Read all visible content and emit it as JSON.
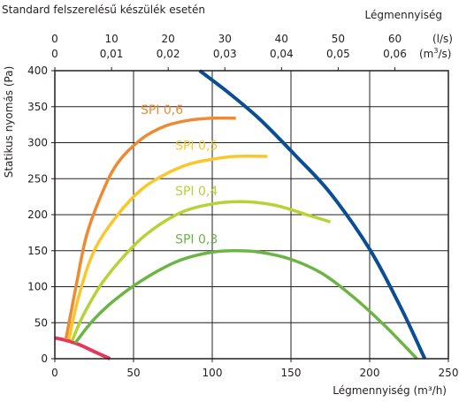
{
  "header": {
    "title": "Standard felszerelésű készülék esetén",
    "top_axis_title": "Légmennyiség"
  },
  "chart_data": {
    "type": "line",
    "title": "Standard felszerelésű készülék esetén",
    "xlabel": "Légmennyiség (m³/h)",
    "ylabel": "Statikus nyomás (Pa)",
    "xlim": [
      0,
      250
    ],
    "ylim": [
      0,
      400
    ],
    "grid": true,
    "x_ticks": [
      0,
      50,
      100,
      150,
      200,
      250
    ],
    "y_ticks": [
      0,
      50,
      100,
      150,
      200,
      250,
      300,
      350,
      400
    ],
    "secondary_x_ls": {
      "label": "Légmennyiség",
      "unit": "(l/s)",
      "ticks": [
        "0",
        "10",
        "20",
        "30",
        "40",
        "50",
        "60"
      ],
      "values_m3h": [
        0,
        36,
        72,
        108,
        144,
        180,
        216
      ]
    },
    "secondary_x_m3s": {
      "unit_base": "(m",
      "unit_sup": "3",
      "unit_tail": "/s)",
      "ticks": [
        "0",
        "0,01",
        "0,02",
        "0,03",
        "0,04",
        "0,05",
        "0,06"
      ],
      "values_m3h": [
        0,
        36,
        72,
        108,
        144,
        180,
        216
      ]
    },
    "series": [
      {
        "name": "",
        "color": "#0a4f93",
        "width": 4,
        "points": [
          [
            92,
            400
          ],
          [
            110,
            370
          ],
          [
            130,
            333
          ],
          [
            153,
            282
          ],
          [
            175,
            230
          ],
          [
            200,
            152
          ],
          [
            220,
            70
          ],
          [
            235,
            0
          ]
        ]
      },
      {
        "name": "",
        "color": "#e5375a",
        "width": 4,
        "points": [
          [
            0,
            29
          ],
          [
            8,
            25
          ],
          [
            15,
            20
          ],
          [
            25,
            10
          ],
          [
            35,
            0
          ]
        ]
      },
      {
        "name": "SPI 0,6",
        "color": "#ee8a33",
        "width": 3.5,
        "points": [
          [
            7,
            27
          ],
          [
            13,
            95
          ],
          [
            20,
            170
          ],
          [
            30,
            230
          ],
          [
            40,
            272
          ],
          [
            55,
            305
          ],
          [
            70,
            323
          ],
          [
            85,
            331
          ],
          [
            100,
            334
          ],
          [
            115,
            334
          ]
        ],
        "label_at": [
          68,
          340
        ]
      },
      {
        "name": "SPI 0,5",
        "color": "#f9c72b",
        "width": 3.5,
        "points": [
          [
            9,
            27
          ],
          [
            15,
            85
          ],
          [
            25,
            150
          ],
          [
            40,
            200
          ],
          [
            55,
            235
          ],
          [
            70,
            256
          ],
          [
            85,
            270
          ],
          [
            100,
            277
          ],
          [
            115,
            281
          ],
          [
            135,
            281
          ]
        ],
        "label_at": [
          90,
          290
        ]
      },
      {
        "name": "SPI 0,4",
        "color": "#b5d334",
        "width": 3.5,
        "points": [
          [
            11,
            25
          ],
          [
            18,
            60
          ],
          [
            30,
            105
          ],
          [
            45,
            145
          ],
          [
            60,
            176
          ],
          [
            80,
            203
          ],
          [
            100,
            215
          ],
          [
            120,
            218
          ],
          [
            140,
            213
          ],
          [
            160,
            200
          ],
          [
            175,
            190
          ]
        ],
        "label_at": [
          90,
          227
        ]
      },
      {
        "name": "SPI 0,3",
        "color": "#6cb443",
        "width": 3.5,
        "points": [
          [
            13,
            22
          ],
          [
            25,
            55
          ],
          [
            40,
            85
          ],
          [
            60,
            115
          ],
          [
            80,
            137
          ],
          [
            100,
            148
          ],
          [
            115,
            150
          ],
          [
            130,
            148
          ],
          [
            150,
            138
          ],
          [
            170,
            118
          ],
          [
            190,
            85
          ],
          [
            210,
            45
          ],
          [
            230,
            0
          ]
        ],
        "label_at": [
          90,
          160
        ]
      }
    ]
  }
}
